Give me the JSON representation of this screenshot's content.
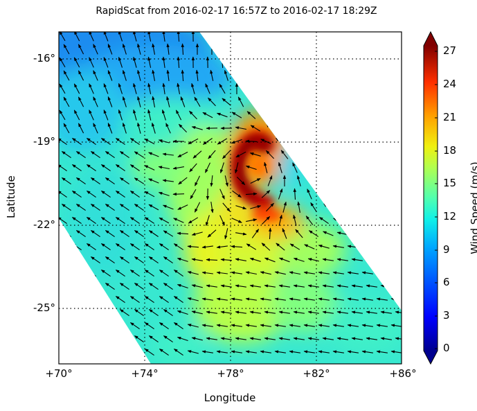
{
  "chart_data": {
    "type": "heatmap",
    "subtype": "wind-vector-field (quiver over colored swath)",
    "title": "RapidScat  from 2016-02-17 16:57Z to 2016-02-17 18:29Z",
    "xlabel": "Longitude",
    "ylabel": "Latitude",
    "x_ticks": [
      "+70°",
      "+74°",
      "+78°",
      "+82°",
      "+86°"
    ],
    "x_tick_values": [
      70,
      74,
      78,
      82,
      86
    ],
    "y_ticks": [
      "-16°",
      "-19°",
      "-22°",
      "-25°"
    ],
    "y_tick_values": [
      -16,
      -19,
      -22,
      -25
    ],
    "xlim": [
      70,
      86
    ],
    "ylim": [
      -27.0,
      -15.0
    ],
    "grid": "dotted, at tick positions",
    "colorbar": {
      "label": "Wind Speed (m/s)",
      "ticks": [
        "0",
        "3",
        "6",
        "9",
        "12",
        "15",
        "18",
        "21",
        "24",
        "27"
      ],
      "tick_values": [
        0,
        3,
        6,
        9,
        12,
        15,
        18,
        21,
        24,
        27
      ],
      "range": [
        0,
        27
      ],
      "colormap": "jet",
      "extend": "both"
    },
    "features": [
      {
        "name": "storm core (cyclone)",
        "center_lon": 78.8,
        "center_lat": -20.0,
        "max_wind_ms": 27,
        "shape": "C-shaped eyewall of highest winds (dark red)"
      },
      {
        "name": "high-wind band",
        "lon_range": [
          78,
          81
        ],
        "lat_range": [
          -21.5,
          -22
        ],
        "wind_ms": "20-23 (orange)"
      },
      {
        "name": "low-wind region",
        "lon_range": [
          70,
          76
        ],
        "lat_range": [
          -15,
          -17.5
        ],
        "wind_ms": "6-10 (blue)"
      },
      {
        "name": "moderate-wind southern region",
        "lon_range": [
          76,
          82
        ],
        "lat_range": [
          -22,
          -26
        ],
        "wind_ms": "13-17 (green-yellow)"
      }
    ],
    "vector_directions": {
      "north_of_storm": "northward / north-northeast",
      "west_side": "northwest",
      "south_side": "westward",
      "storm_core": "cyclonic (clockwise, southern hemisphere) circulation"
    }
  }
}
